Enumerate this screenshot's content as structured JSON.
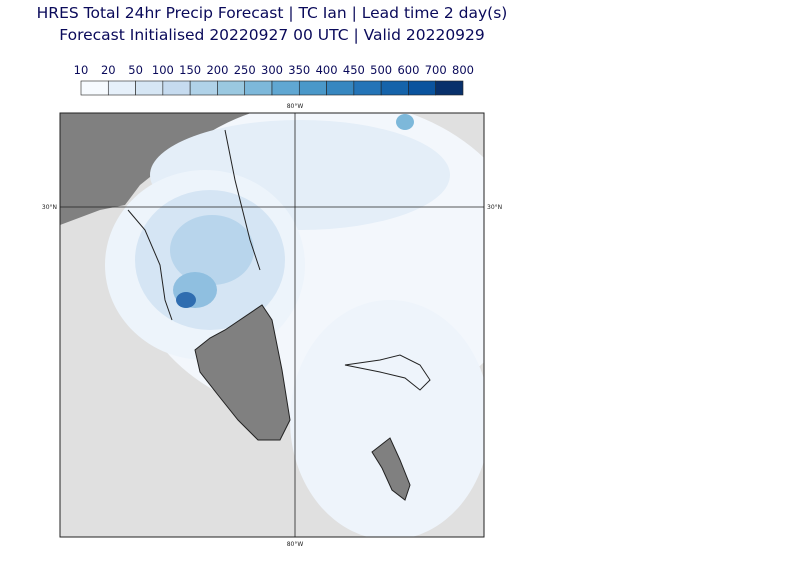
{
  "header": {
    "title": "HRES Total 24hr Precip Forecast | TC Ian | Lead time 2 day(s)",
    "subtitle": "Forecast Initialised 20220927 00 UTC | Valid 20220929"
  },
  "colorbar": {
    "ticks": [
      10,
      20,
      50,
      100,
      150,
      200,
      250,
      300,
      350,
      400,
      450,
      500,
      600,
      700,
      800
    ],
    "colors": [
      "#f7fbff",
      "#e6f0fa",
      "#d6e6f4",
      "#c6dbef",
      "#b0d2e8",
      "#9ac8e0",
      "#7db8da",
      "#60a7d2",
      "#4a98c9",
      "#3787c0",
      "#2474b7",
      "#1563aa",
      "#0a539e",
      "#08306b"
    ]
  },
  "map": {
    "lon_label_top": "80°W",
    "lon_label_bottom": "80°W",
    "lat_label_left": "30°N",
    "lat_label_right": "30°N"
  }
}
